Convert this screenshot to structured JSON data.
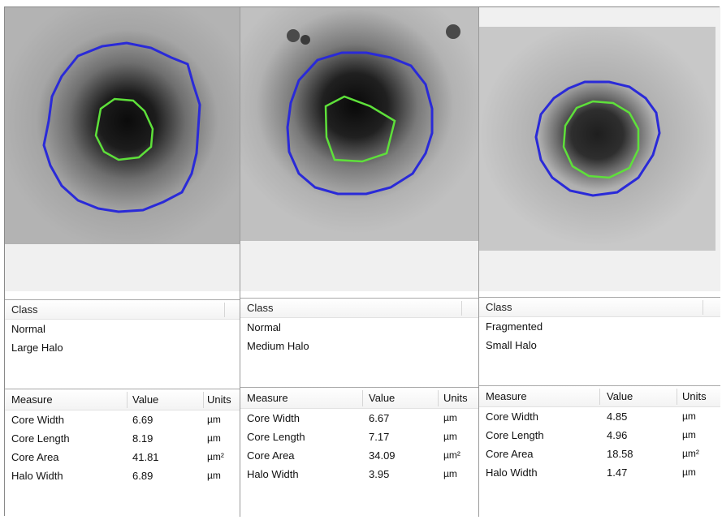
{
  "panels": [
    {
      "class_header": "Class",
      "classes": [
        "Normal",
        "Large Halo"
      ],
      "measure_header": "Measure",
      "value_header": "Value",
      "units_header": "Units",
      "rows": [
        {
          "measure": "Core Width",
          "value": "6.69",
          "unit": "µm"
        },
        {
          "measure": "Core Length",
          "value": "8.19",
          "unit": "µm"
        },
        {
          "measure": "Core Area",
          "value": "41.81",
          "unit": "µm²"
        },
        {
          "measure": "Halo Width",
          "value": "6.89",
          "unit": "µm"
        }
      ]
    },
    {
      "class_header": "Class",
      "classes": [
        "Normal",
        "Medium Halo"
      ],
      "measure_header": "Measure",
      "value_header": "Value",
      "units_header": "Units",
      "rows": [
        {
          "measure": "Core Width",
          "value": "6.67",
          "unit": "µm"
        },
        {
          "measure": "Core Length",
          "value": "7.17",
          "unit": "µm"
        },
        {
          "measure": "Core Area",
          "value": "34.09",
          "unit": "µm²"
        },
        {
          "measure": "Halo Width",
          "value": "3.95",
          "unit": "µm"
        }
      ]
    },
    {
      "class_header": "Class",
      "classes": [
        "Fragmented",
        "Small Halo"
      ],
      "measure_header": "Measure",
      "value_header": "Value",
      "units_header": "Units",
      "rows": [
        {
          "measure": "Core Width",
          "value": "4.85",
          "unit": "µm"
        },
        {
          "measure": "Core Length",
          "value": "4.96",
          "unit": "µm"
        },
        {
          "measure": "Core Area",
          "value": "18.58",
          "unit": "µm²"
        },
        {
          "measure": "Halo Width",
          "value": "1.47",
          "unit": "µm"
        }
      ]
    }
  ],
  "colors": {
    "halo_outline": "#2a2ad8",
    "core_outline": "#5ee03a",
    "image_bg": "#a9a9a9"
  }
}
